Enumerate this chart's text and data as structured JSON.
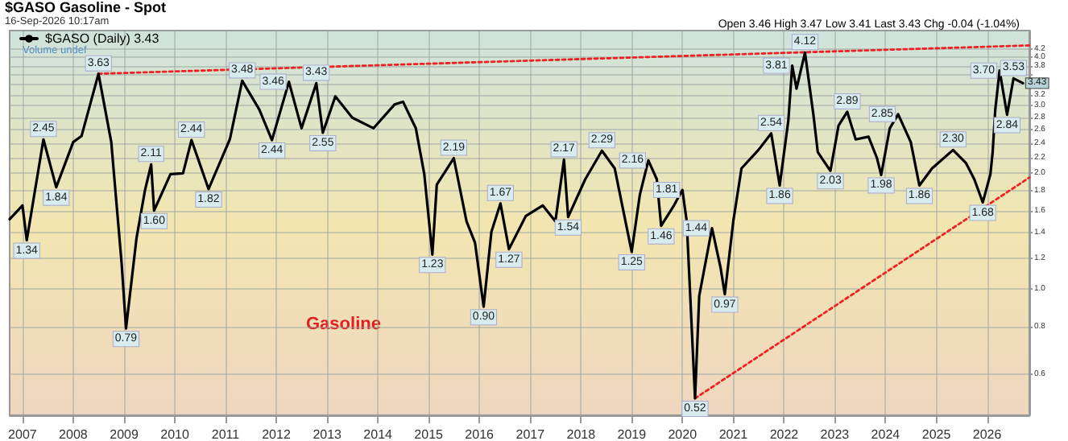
{
  "chart_data": {
    "type": "line",
    "title": "$GASO Gasoline - Spot",
    "subtitle": "16-Sep-2026 10:17am",
    "annotations": [
      "Open 3.46 High 3.47 Low 3.41 Last 3.43 Chg -0.04 (-1.04%)",
      "Volume undef",
      "Gasoline"
    ],
    "log": "y",
    "grid": true,
    "legend": "top left",
    "marker": "none",
    "line_style": "solid",
    "xlim": [
      "2006-10",
      "2026-11"
    ],
    "xticks": [
      {
        "value": "2007",
        "label": "2007"
      },
      {
        "value": "2008",
        "label": "2008"
      },
      {
        "value": "2009",
        "label": "2009"
      },
      {
        "value": "2010",
        "label": "2010"
      },
      {
        "value": "2011",
        "label": "2011"
      },
      {
        "value": "2012",
        "label": "2012"
      },
      {
        "value": "2013",
        "label": "2013"
      },
      {
        "value": "2014",
        "label": "2014"
      },
      {
        "value": "2015",
        "label": "2015"
      },
      {
        "value": "2016",
        "label": "2016"
      },
      {
        "value": "2017",
        "label": "2017"
      },
      {
        "value": "2018",
        "label": "2018"
      },
      {
        "value": "2019",
        "label": "2019"
      },
      {
        "value": "2020",
        "label": "2020"
      },
      {
        "value": "2021",
        "label": "2021"
      },
      {
        "value": "2022",
        "label": "2022"
      },
      {
        "value": "2023",
        "label": "2023"
      },
      {
        "value": "2024",
        "label": "2024"
      },
      {
        "value": "2025",
        "label": "2025"
      },
      {
        "value": "2026",
        "label": "2026"
      }
    ],
    "ylim": [
      0.47,
      4.7
    ],
    "yticks": [
      0.6,
      0.8,
      {
        "value": 1,
        "label": "1.0"
      },
      1.2,
      1.4,
      1.6,
      1.8,
      {
        "value": 2,
        "label": "2.0"
      },
      2.2,
      2.4,
      2.6,
      2.8,
      {
        "value": 3,
        "label": "3.0"
      },
      3.2,
      {
        "value": 3.4,
        "label": null
      },
      {
        "value": 3.6,
        "label": null
      },
      3.8,
      {
        "value": 4,
        "label": "4.0"
      },
      4.2
    ],
    "series": [
      {
        "name": "$GASO (Daily) 3.43",
        "color": "#000000",
        "x": [
          "2006-10",
          "2007-01",
          "2007-02",
          "2007-06",
          "2007-09",
          "2008-01",
          "2008-03",
          "2008-07",
          "2008-10",
          "2008-12-15",
          "2009-01-15",
          "2009-04",
          "2009-06",
          "2009-07-15",
          "2009-08-05",
          "2009-12",
          "2010-03",
          "2010-05",
          "2010-09",
          "2011-02",
          "2011-05",
          "2011-09",
          "2011-12",
          "2012-04",
          "2012-07",
          "2012-10-15",
          "2012-12",
          "2013-03",
          "2013-07",
          "2013-12",
          "2014-05",
          "2014-07",
          "2014-10",
          "2014-12",
          "2015-01-28",
          "2015-03",
          "2015-07",
          "2015-10",
          "2015-12",
          "2016-02",
          "2016-03-28",
          "2016-06",
          "2016-08",
          "2016-12",
          "2017-04",
          "2017-07",
          "2017-09-01",
          "2017-10",
          "2018-02",
          "2018-06",
          "2018-09",
          "2019-01",
          "2019-03",
          "2019-05",
          "2019-07",
          "2019-08",
          "2019-11",
          "2020-01",
          "2020-02",
          "2020-04",
          "2020-05",
          "2020-08",
          "2020-10",
          "2020-11",
          "2021-01",
          "2021-03",
          "2021-07",
          "2021-10",
          "2021-12",
          "2022-02",
          "2022-03",
          "2022-04",
          "2022-06",
          "2022-08",
          "2022-09",
          "2022-12",
          "2023-01-28",
          "2023-04",
          "2023-06",
          "2023-09",
          "2023-11",
          "2023-12",
          "2024-02",
          "2024-04",
          "2024-07",
          "2024-09",
          "2024-12",
          "2025-05",
          "2025-08",
          "2025-10",
          "2025-12",
          "2026-01-25",
          "2026-02-10",
          "2026-03-01",
          "2026-04",
          "2026-05-25",
          "2026-07-10",
          "2026-09-16"
        ],
        "values": [
          1.52,
          1.65,
          1.34,
          2.45,
          1.84,
          2.41,
          2.5,
          3.63,
          2.41,
          1.16,
          0.79,
          1.36,
          1.81,
          2.11,
          1.6,
          1.99,
          2.0,
          2.44,
          1.82,
          2.45,
          3.48,
          2.93,
          2.44,
          3.46,
          2.62,
          3.43,
          2.55,
          3.17,
          2.79,
          2.62,
          3.02,
          3.07,
          2.62,
          1.99,
          1.23,
          1.87,
          2.19,
          1.5,
          1.32,
          0.9,
          1.41,
          1.67,
          1.27,
          1.55,
          1.65,
          1.5,
          2.17,
          1.54,
          1.93,
          2.29,
          2.06,
          1.25,
          1.76,
          2.16,
          1.93,
          1.46,
          1.65,
          1.81,
          1.5,
          0.52,
          0.96,
          1.44,
          1.14,
          0.97,
          1.5,
          2.06,
          2.3,
          2.54,
          1.86,
          2.74,
          3.81,
          3.32,
          4.12,
          2.83,
          2.27,
          2.03,
          2.66,
          2.89,
          2.45,
          2.49,
          2.19,
          1.98,
          2.62,
          2.85,
          2.41,
          1.86,
          2.06,
          2.3,
          2.13,
          1.93,
          1.68,
          1.99,
          2.27,
          2.93,
          3.7,
          2.84,
          3.53,
          3.43
        ],
        "value_labels": [
          null,
          null,
          "1.34",
          "2.45",
          "1.84",
          null,
          null,
          "3.63",
          null,
          null,
          "0.79",
          null,
          null,
          "2.11",
          "1.60",
          null,
          null,
          "2.44",
          "1.82",
          null,
          "3.48",
          null,
          "2.44",
          "3.46",
          null,
          "3.43",
          "2.55",
          null,
          null,
          null,
          null,
          null,
          null,
          null,
          "1.23",
          null,
          "2.19",
          null,
          null,
          "0.90",
          null,
          "1.67",
          "1.27",
          null,
          null,
          null,
          "2.17",
          "1.54",
          null,
          "2.29",
          null,
          "1.25",
          null,
          "2.16",
          null,
          "1.46",
          null,
          "1.81",
          null,
          "0.52",
          null,
          "1.44",
          null,
          "0.97",
          null,
          null,
          null,
          "2.54",
          "1.86",
          null,
          "3.81",
          null,
          "4.12",
          null,
          null,
          "2.03",
          null,
          "2.89",
          null,
          null,
          null,
          "1.98",
          null,
          "2.85",
          null,
          "1.86",
          null,
          "2.30",
          null,
          null,
          "1.68",
          null,
          null,
          null,
          "3.70",
          "2.84",
          "3.53",
          "3.43"
        ]
      },
      {
        "type": "line",
        "color": "#ee2222",
        "line_style": "dotted",
        "x": [
          "2008-07",
          "2026-11"
        ],
        "values": [
          3.63,
          4.3
        ]
      },
      {
        "type": "line",
        "color": "#ee2222",
        "line_style": "dotted",
        "x": [
          "2020-04",
          "2026-11"
        ],
        "values": [
          0.52,
          1.95
        ]
      }
    ]
  }
}
